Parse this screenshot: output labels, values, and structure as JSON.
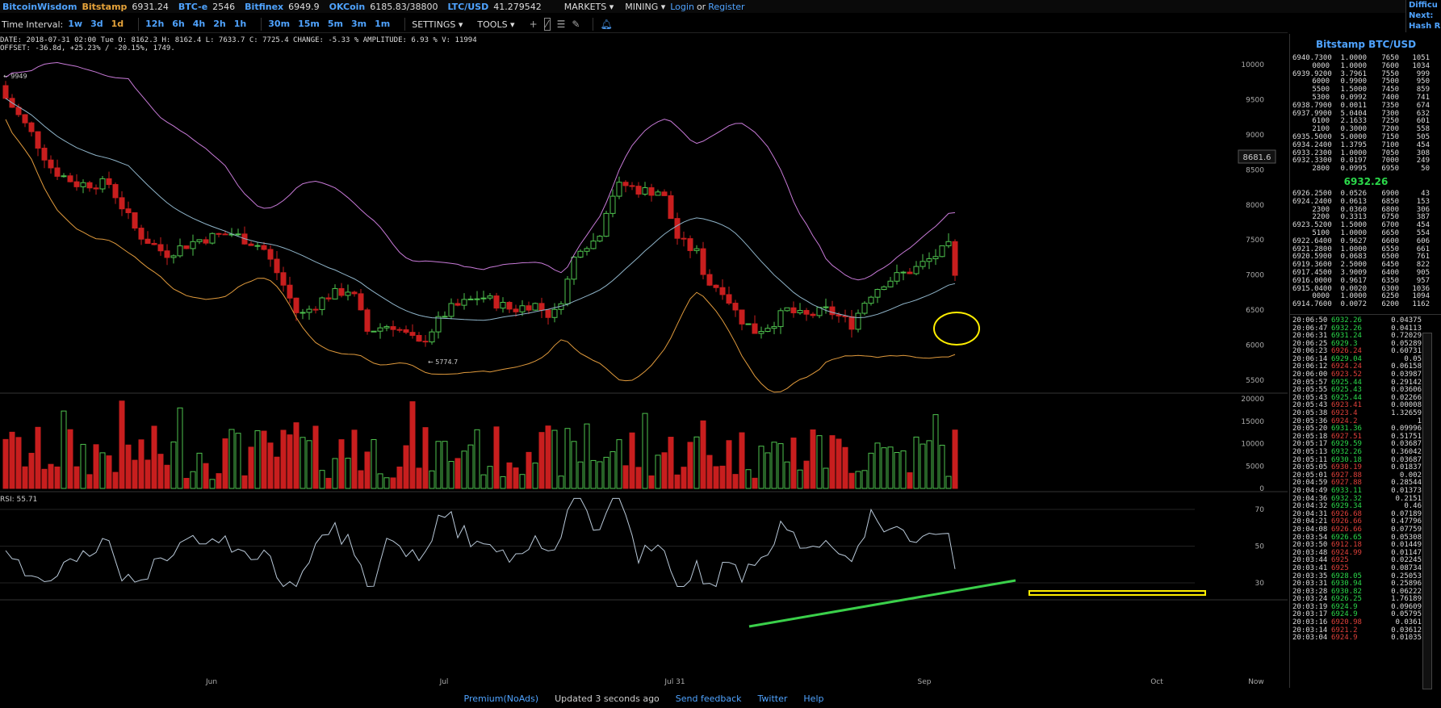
{
  "topbar": {
    "brand": "BitcoinWisdom",
    "tickers": [
      {
        "name": "Bitstamp",
        "price": "6931.24",
        "style": "orange"
      },
      {
        "name": "BTC-e",
        "price": "2546",
        "style": "blue"
      },
      {
        "name": "Bitfinex",
        "price": "6949.9",
        "style": "blue"
      },
      {
        "name": "OKCoin",
        "price": "6185.83/38800",
        "style": "blue"
      },
      {
        "name": "LTC/USD",
        "price": "41.279542",
        "style": "blue"
      }
    ],
    "markets": "MARKETS ▾",
    "mining": "MINING ▾",
    "login": "Login",
    "or": "or",
    "register": "Register",
    "difficulty": [
      "Difficu",
      "Next:",
      "Hash R"
    ]
  },
  "toolbar": {
    "label": "Time Interval:",
    "intervals": [
      "1w",
      "3d",
      "1d",
      "12h",
      "6h",
      "4h",
      "2h",
      "1h",
      "30m",
      "15m",
      "5m",
      "3m",
      "1m"
    ],
    "selected": "1d",
    "settings": "SETTINGS ▾",
    "tools": "TOOLS ▾"
  },
  "info": {
    "line1": "DATE: 2018-07-31 02:00 Tue   O: 8162.3   H: 8162.4   L: 7633.7   C: 7725.4   CHANGE: -5.33 %   AMPLITUDE: 6.93 %   V: 11994",
    "line2": "OFFSET: -36.8d, +25.23% / -20.15%, 1749."
  },
  "chart": {
    "price_ticks": [
      "10000",
      "9500",
      "9000",
      "8500",
      "8000",
      "7500",
      "7000",
      "6500",
      "6000",
      "5500"
    ],
    "volume_ticks": [
      "20000",
      "15000",
      "10000",
      "5000",
      "0"
    ],
    "rsi_ticks": [
      "70",
      "50",
      "30"
    ],
    "x_labels": [
      "Jun",
      "Jul",
      "Jul 31",
      "Sep",
      "Oct",
      "Now"
    ],
    "cursor_price": "8681.6",
    "high_label": "← 9949",
    "low_label": "← 5774.7",
    "rsi_label": "RSI: 55.71",
    "colors": {
      "up": "#4ec24e",
      "down": "#c81e1e",
      "upper_band": "#c87ad8",
      "middle_band": "#8fb4c9",
      "lower_band": "#e09a3c",
      "annotation": "#ffee00",
      "trendline": "#3ad04a"
    }
  },
  "sidebar": {
    "title": "Bitstamp BTC/USD",
    "asks": [
      [
        "6940.7300",
        "1.0000",
        "7650",
        "1051"
      ],
      [
        "0000",
        "1.0000",
        "7600",
        "1034"
      ],
      [
        "6939.9200",
        "3.7961",
        "7550",
        "999"
      ],
      [
        "6000",
        "0.9900",
        "7500",
        "950"
      ],
      [
        "5500",
        "1.5000",
        "7450",
        "859"
      ],
      [
        "5300",
        "0.0992",
        "7400",
        "741"
      ],
      [
        "6938.7900",
        "0.0011",
        "7350",
        "674"
      ],
      [
        "6937.9900",
        "5.0404",
        "7300",
        "632"
      ],
      [
        "6100",
        "2.1633",
        "7250",
        "601"
      ],
      [
        "2100",
        "0.3000",
        "7200",
        "558"
      ],
      [
        "6935.5000",
        "5.0000",
        "7150",
        "505"
      ],
      [
        "6934.2400",
        "1.3795",
        "7100",
        "454"
      ],
      [
        "6933.2300",
        "1.0000",
        "7050",
        "308"
      ],
      [
        "6932.3300",
        "0.0197",
        "7000",
        "249"
      ],
      [
        "2800",
        "0.0995",
        "6950",
        "50"
      ]
    ],
    "mid": "6932.26",
    "bids": [
      [
        "6926.2500",
        "0.0526",
        "6900",
        "43"
      ],
      [
        "6924.2400",
        "0.0613",
        "6850",
        "153"
      ],
      [
        "2300",
        "0.0360",
        "6800",
        "306"
      ],
      [
        "2200",
        "0.3313",
        "6750",
        "387"
      ],
      [
        "6923.5200",
        "1.5000",
        "6700",
        "454"
      ],
      [
        "5100",
        "1.0000",
        "6650",
        "554"
      ],
      [
        "6922.6400",
        "0.9627",
        "6600",
        "606"
      ],
      [
        "6921.2800",
        "1.0000",
        "6550",
        "661"
      ],
      [
        "6920.5900",
        "0.0683",
        "6500",
        "761"
      ],
      [
        "6919.3600",
        "2.5000",
        "6450",
        "822"
      ],
      [
        "6917.4500",
        "3.9009",
        "6400",
        "905"
      ],
      [
        "6916.0000",
        "0.9617",
        "6350",
        "957"
      ],
      [
        "6915.0400",
        "0.0020",
        "6300",
        "1036"
      ],
      [
        "0000",
        "1.0000",
        "6250",
        "1094"
      ],
      [
        "6914.7600",
        "0.0072",
        "6200",
        "1162"
      ]
    ],
    "trades": [
      [
        "20:06:50",
        "6932.26",
        "0.04375",
        "up"
      ],
      [
        "20:06:47",
        "6932.26",
        "0.04113",
        "up"
      ],
      [
        "20:06:31",
        "6931.24",
        "0.72029",
        "up"
      ],
      [
        "20:06:25",
        "6929.3",
        "0.05289",
        "up"
      ],
      [
        "20:06:23",
        "6926.24",
        "0.60731",
        "dn"
      ],
      [
        "20:06:14",
        "6929.04",
        "0.05",
        "up"
      ],
      [
        "20:06:12",
        "6924.24",
        "0.06158",
        "dn"
      ],
      [
        "20:06:00",
        "6923.52",
        "0.03987",
        "dn"
      ],
      [
        "20:05:57",
        "6925.44",
        "0.29142",
        "up"
      ],
      [
        "20:05:55",
        "6925.43",
        "0.03606",
        "up"
      ],
      [
        "20:05:43",
        "6925.44",
        "0.02266",
        "up"
      ],
      [
        "20:05:43",
        "6923.41",
        "0.00008",
        "dn"
      ],
      [
        "20:05:38",
        "6923.4",
        "1.32659",
        "dn"
      ],
      [
        "20:05:36",
        "6924.2",
        "1",
        "dn"
      ],
      [
        "20:05:20",
        "6931.36",
        "0.09996",
        "up"
      ],
      [
        "20:05:18",
        "6927.51",
        "0.51751",
        "dn"
      ],
      [
        "20:05:17",
        "6929.59",
        "0.03687",
        "up"
      ],
      [
        "20:05:13",
        "6932.26",
        "0.36042",
        "up"
      ],
      [
        "20:05:11",
        "6930.18",
        "0.03687",
        "up"
      ],
      [
        "20:05:05",
        "6930.19",
        "0.01837",
        "dn"
      ],
      [
        "20:05:01",
        "6927.88",
        "0.002",
        "dn"
      ],
      [
        "20:04:59",
        "6927.88",
        "0.28544",
        "dn"
      ],
      [
        "20:04:49",
        "6933.11",
        "0.01373",
        "up"
      ],
      [
        "20:04:36",
        "6932.32",
        "0.2151",
        "up"
      ],
      [
        "20:04:32",
        "6929.34",
        "0.46",
        "up"
      ],
      [
        "20:04:31",
        "6926.68",
        "0.07189",
        "dn"
      ],
      [
        "20:04:21",
        "6926.66",
        "0.47796",
        "dn"
      ],
      [
        "20:04:08",
        "6926.66",
        "0.07759",
        "dn"
      ],
      [
        "20:03:54",
        "6926.65",
        "0.05308",
        "up"
      ],
      [
        "20:03:50",
        "6912.18",
        "0.01449",
        "dn"
      ],
      [
        "20:03:48",
        "6924.99",
        "0.01147",
        "dn"
      ],
      [
        "20:03:44",
        "6925",
        "0.02245",
        "dn"
      ],
      [
        "20:03:41",
        "6925",
        "0.08734",
        "dn"
      ],
      [
        "20:03:35",
        "6928.05",
        "0.25053",
        "up"
      ],
      [
        "20:03:31",
        "6930.94",
        "0.25896",
        "up"
      ],
      [
        "20:03:28",
        "6930.82",
        "0.06222",
        "up"
      ],
      [
        "20:03:24",
        "6926.25",
        "1.76189",
        "up"
      ],
      [
        "20:03:19",
        "6924.9",
        "0.09609",
        "up"
      ],
      [
        "20:03:17",
        "6924.9",
        "0.05795",
        "up"
      ],
      [
        "20:03:16",
        "6920.98",
        "0.0361",
        "dn"
      ],
      [
        "20:03:14",
        "6921.2",
        "0.03612",
        "dn"
      ],
      [
        "20:03:04",
        "6924.9",
        "0.01035",
        "dn"
      ]
    ]
  },
  "footer": {
    "premium": "Premium(NoAds)",
    "updated": "Updated 3 seconds ago",
    "feedback": "Send feedback",
    "twitter": "Twitter",
    "help": "Help"
  }
}
